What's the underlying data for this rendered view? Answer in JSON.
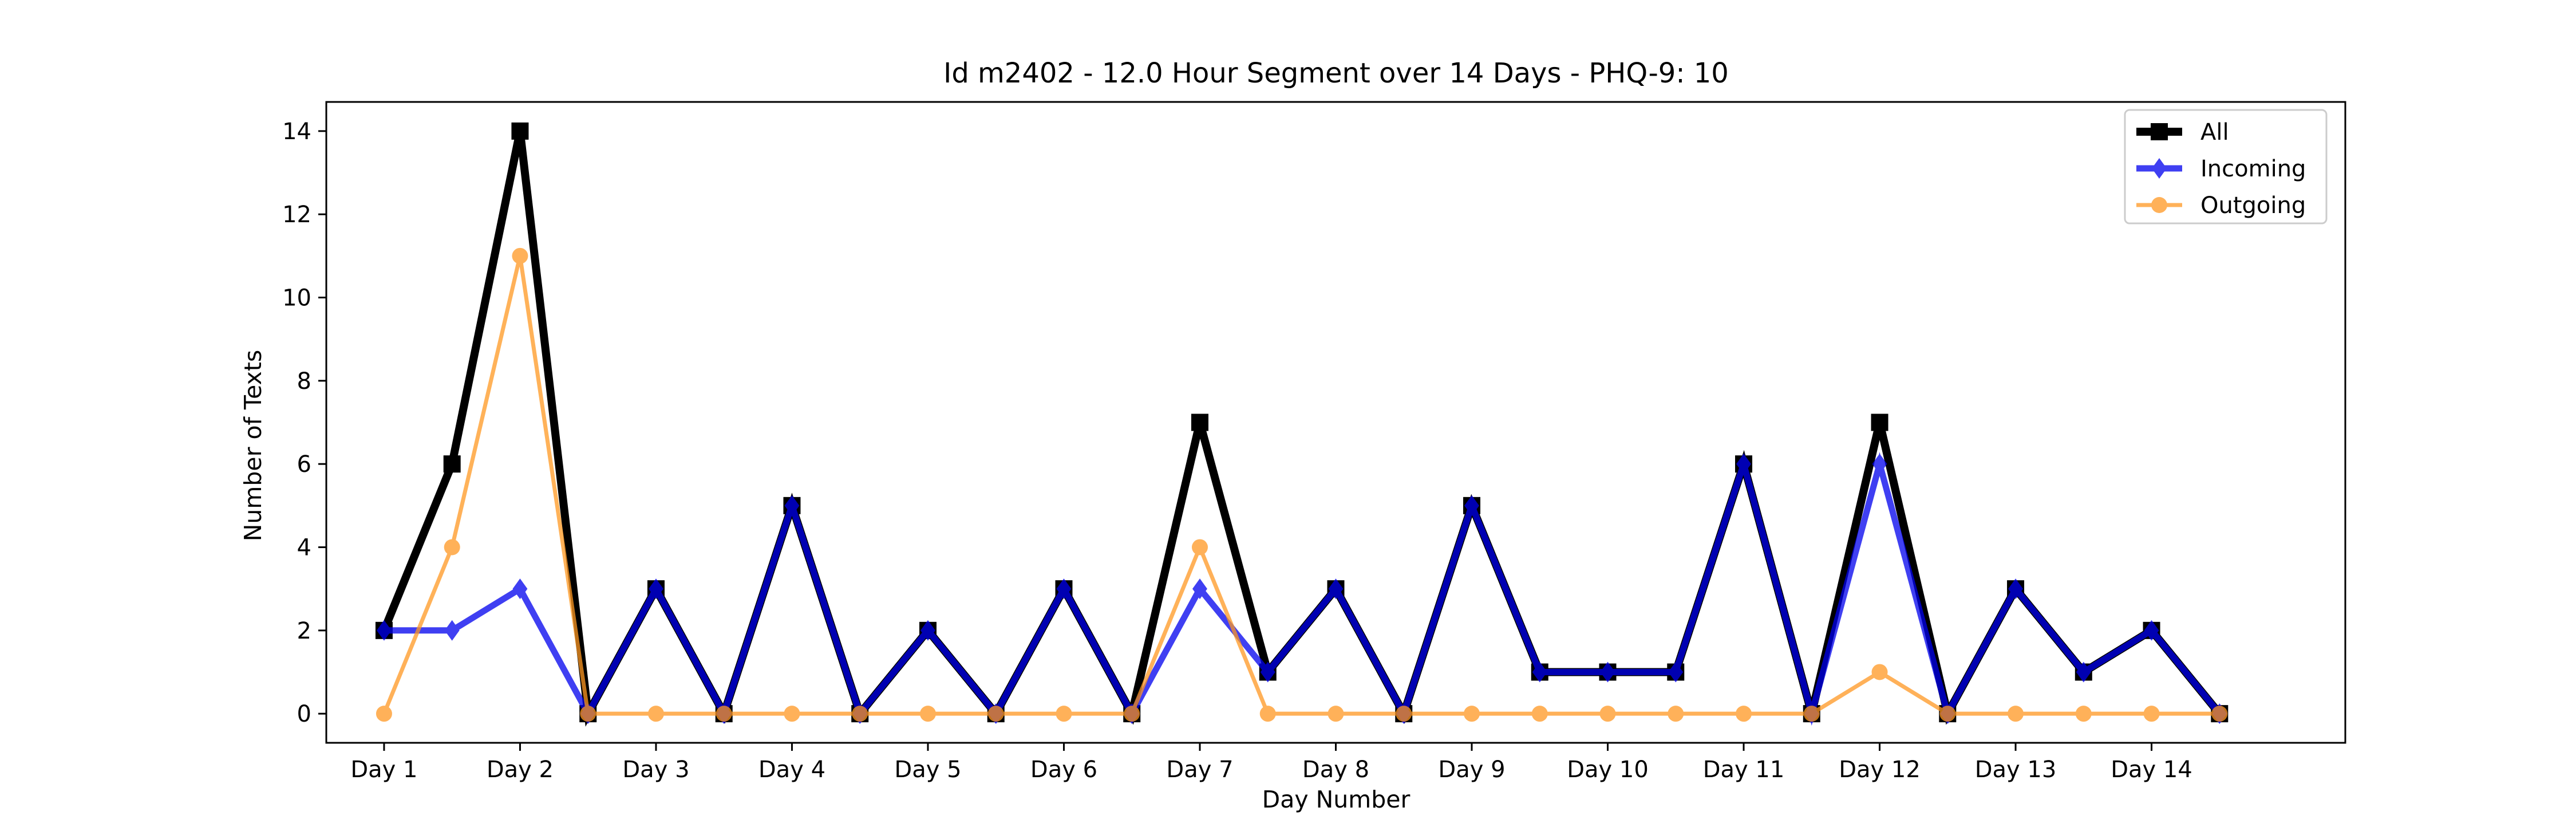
{
  "chart_data": {
    "type": "line",
    "title": "Id m2402 - 12.0 Hour Segment over 14 Days - PHQ-9: 10",
    "xlabel": "Day Number",
    "ylabel": "Number of Texts",
    "xlim": [
      -0.85,
      28.85
    ],
    "ylim": [
      -0.7,
      14.7
    ],
    "yticks": [
      0,
      2,
      4,
      6,
      8,
      10,
      12,
      14
    ],
    "xticks": {
      "positions": [
        0,
        2,
        4,
        6,
        8,
        10,
        12,
        14,
        16,
        18,
        20,
        22,
        24,
        26
      ],
      "labels": [
        "Day 1",
        "Day 2",
        "Day 3",
        "Day 4",
        "Day 5",
        "Day 6",
        "Day 7",
        "Day 8",
        "Day 9",
        "Day 10",
        "Day 11",
        "Day 12",
        "Day 13",
        "Day 14"
      ]
    },
    "x": [
      0,
      1,
      2,
      3,
      4,
      5,
      6,
      7,
      8,
      9,
      10,
      11,
      12,
      13,
      14,
      15,
      16,
      17,
      18,
      19,
      20,
      21,
      22,
      23,
      24,
      25,
      26,
      27
    ],
    "legend_position": "top-right",
    "grid": false,
    "series": [
      {
        "name": "All",
        "color": "#000000",
        "marker": "square",
        "values": [
          2,
          6,
          14,
          0,
          3,
          0,
          5,
          0,
          2,
          0,
          3,
          0,
          7,
          1,
          3,
          0,
          5,
          1,
          1,
          1,
          6,
          0,
          7,
          0,
          3,
          1,
          2,
          0
        ]
      },
      {
        "name": "Incoming",
        "color": "#0000ee",
        "marker": "diamond",
        "values": [
          2,
          2,
          3,
          0,
          3,
          0,
          5,
          0,
          2,
          0,
          3,
          0,
          3,
          1,
          3,
          0,
          5,
          1,
          1,
          1,
          6,
          0,
          6,
          0,
          3,
          1,
          2,
          0
        ]
      },
      {
        "name": "Outgoing",
        "color": "#ff9822",
        "marker": "circle",
        "values": [
          0,
          4,
          11,
          0,
          0,
          0,
          0,
          0,
          0,
          0,
          0,
          0,
          4,
          0,
          0,
          0,
          0,
          0,
          0,
          0,
          0,
          0,
          1,
          0,
          0,
          0,
          0,
          0
        ]
      }
    ]
  }
}
